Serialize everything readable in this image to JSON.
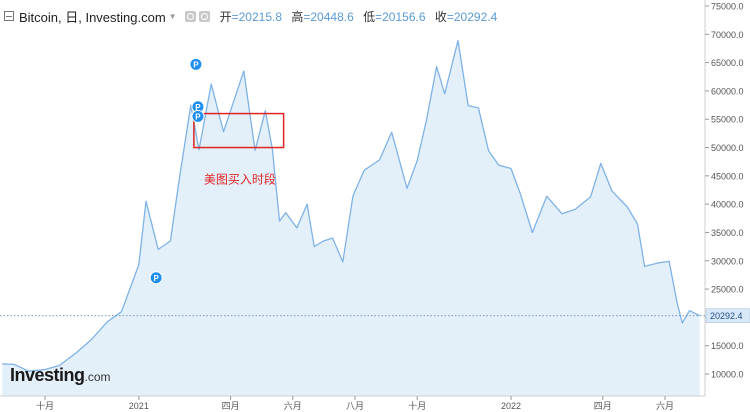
{
  "header": {
    "title": "Bitcoin, 日, Investing.com",
    "open_label": "开",
    "open_value": "=20215.8",
    "high_label": "高",
    "high_value": "=20448.6",
    "low_label": "低",
    "low_value": "=20156.6",
    "close_label": "收",
    "close_value": "=20292.4"
  },
  "logo": {
    "brand": "Investing",
    "tld": ".com"
  },
  "annotation": {
    "text": "美图买入时段",
    "color": "#e02424"
  },
  "colors": {
    "line": "#7fb2e6",
    "fill": "#e3f0fa",
    "axis_text": "#555555",
    "price_tag_bg": "#d9e8f6",
    "price_line": "#5577aa",
    "marker": "#1f8ef1"
  },
  "marker_label": "P",
  "chart_data": {
    "type": "area",
    "title": "Bitcoin, 日, Investing.com",
    "xlabel": "",
    "ylabel": "",
    "ylim": [
      6000,
      77000
    ],
    "y_ticks": [
      10000,
      15000,
      20000,
      25000,
      30000,
      35000,
      40000,
      45000,
      50000,
      55000,
      60000,
      65000,
      70000,
      75000
    ],
    "y_tick_labels": [
      "10000.0",
      "15000.0",
      "20000.0",
      "25000.0",
      "30000.0",
      "35000.0",
      "40000.0",
      "45000.0",
      "50000.0",
      "55000.0",
      "60000.0",
      "65000.0",
      "70000.0",
      "75000.0"
    ],
    "x_range": [
      "2020-08-20",
      "2022-07-05"
    ],
    "x_ticks": [
      "2020-10-01",
      "2021-01-01",
      "2021-04-01",
      "2021-06-01",
      "2021-08-01",
      "2021-10-01",
      "2022-01-01",
      "2022-04-01",
      "2022-06-01"
    ],
    "x_tick_labels": [
      "十月",
      "2021",
      "四月",
      "六月",
      "八月",
      "十月",
      "2022",
      "四月",
      "六月"
    ],
    "current_price": 20292.4,
    "current_price_label": "20292.4",
    "series": [
      {
        "x": [
          "2020-08-20",
          "2020-09-01",
          "2020-09-15",
          "2020-10-01",
          "2020-10-15",
          "2020-11-01",
          "2020-11-15",
          "2020-12-01",
          "2020-12-15",
          "2021-01-01",
          "2021-01-08",
          "2021-01-20",
          "2021-02-01",
          "2021-02-10",
          "2021-02-21",
          "2021-03-01",
          "2021-03-13",
          "2021-03-25",
          "2021-04-05",
          "2021-04-14",
          "2021-04-25",
          "2021-05-05",
          "2021-05-12",
          "2021-05-19",
          "2021-05-25",
          "2021-06-05",
          "2021-06-15",
          "2021-06-22",
          "2021-07-01",
          "2021-07-10",
          "2021-07-20",
          "2021-07-30",
          "2021-08-10",
          "2021-08-25",
          "2021-09-06",
          "2021-09-21",
          "2021-10-01",
          "2021-10-10",
          "2021-10-20",
          "2021-10-28",
          "2021-11-10",
          "2021-11-20",
          "2021-11-30",
          "2021-12-10",
          "2021-12-20",
          "2022-01-01",
          "2022-01-10",
          "2022-01-22",
          "2022-02-05",
          "2022-02-20",
          "2022-03-05",
          "2022-03-20",
          "2022-03-30",
          "2022-04-10",
          "2022-04-25",
          "2022-05-05",
          "2022-05-12",
          "2022-05-25",
          "2022-06-05",
          "2022-06-13",
          "2022-06-18",
          "2022-06-25",
          "2022-07-05"
        ],
        "values": [
          11800,
          11700,
          10500,
          10800,
          11500,
          13800,
          16000,
          19200,
          21000,
          29300,
          40500,
          32000,
          33500,
          44800,
          57500,
          49600,
          61200,
          52800,
          58700,
          63500,
          49500,
          56500,
          49700,
          37000,
          38500,
          35800,
          40000,
          32500,
          33500,
          34000,
          29800,
          41500,
          46000,
          47800,
          52700,
          42800,
          47700,
          54800,
          64300,
          59500,
          68900,
          57400,
          57000,
          49400,
          46900,
          46300,
          41900,
          35000,
          41400,
          38300,
          39100,
          41300,
          47200,
          42300,
          39500,
          36500,
          29000,
          29600,
          29900,
          22500,
          19000,
          21200,
          20292.4
        ]
      }
    ],
    "markers": [
      {
        "x": "2021-01-18",
        "y": 27000,
        "label": "P"
      },
      {
        "x": "2021-02-26",
        "y": 64700,
        "label": "P"
      },
      {
        "x": "2021-02-28",
        "y": 57200,
        "label": "P"
      },
      {
        "x": "2021-02-28",
        "y": 55500,
        "label": "P"
      }
    ],
    "annotations": [
      {
        "text": "美图买入时段",
        "x_start": "2021-02-24",
        "x_end": "2021-05-23",
        "y_low": 50000,
        "y_high": 56000
      }
    ],
    "grid": false,
    "legend": "none"
  }
}
